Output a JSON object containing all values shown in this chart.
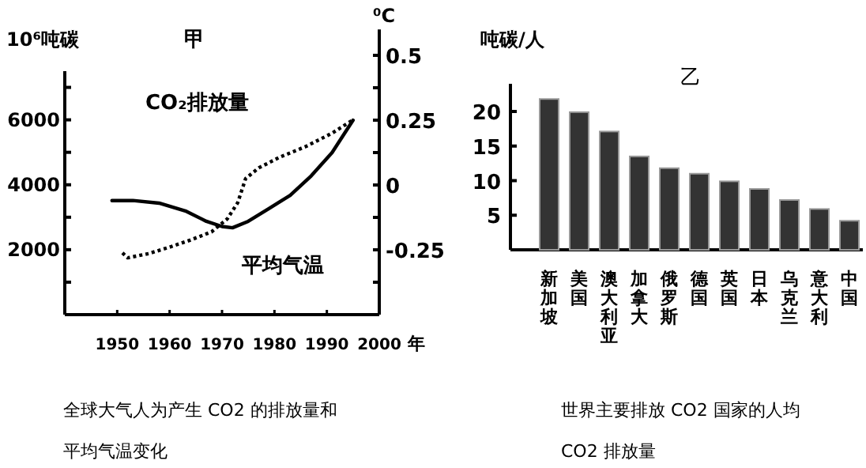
{
  "chart_data": [
    {
      "type": "line",
      "title": "甲",
      "ylabel": "10⁶吨碳",
      "y2label": "⁰C",
      "xlabel": "年",
      "xlim": [
        1940,
        2000
      ],
      "xticks": [
        1950,
        1960,
        1970,
        1980,
        1990,
        2000
      ],
      "ylim": [
        0,
        7500
      ],
      "yticks": [
        {
          "value": 1000,
          "label": null
        },
        2000,
        {
          "value": 3000,
          "label": null
        },
        4000,
        {
          "value": 5000,
          "label": null
        },
        6000,
        {
          "value": 7000,
          "label": null
        }
      ],
      "y2lim": [
        -0.5,
        0.6
      ],
      "y2ticks": [
        {
          "value": -0.375,
          "label": null
        },
        {
          "value": -0.25,
          "label": "-0.25"
        },
        {
          "value": -0.125,
          "label": null
        },
        0,
        {
          "value": 0.125,
          "label": null
        },
        0.25,
        {
          "value": 0.375,
          "label": null
        },
        0.5
      ],
      "grid": false,
      "series": [
        {
          "name": "CO₂排放量",
          "color": "#000000",
          "line_style": "dotted",
          "x": [
            1951,
            1952,
            1956,
            1960,
            1964,
            1968,
            1971,
            1973,
            1974.5,
            1977,
            1981,
            1986,
            1991,
            1995
          ],
          "values": [
            1900,
            1750,
            1880,
            2080,
            2300,
            2550,
            2950,
            3450,
            4190,
            4520,
            4850,
            5180,
            5590,
            6000
          ]
        },
        {
          "name": "平均气温",
          "color": "#000000",
          "line_style": "solid",
          "axis": "y2",
          "x": [
            1949,
            1953,
            1958,
            1963,
            1967,
            1970,
            1972,
            1975,
            1979,
            1983,
            1987,
            1991,
            1995
          ],
          "values": [
            -0.06,
            -0.06,
            -0.07,
            -0.1,
            -0.14,
            -0.16,
            -0.165,
            -0.14,
            -0.09,
            -0.04,
            0.035,
            0.125,
            0.25
          ]
        }
      ],
      "annotations": [
        "全球大气人为产生 CO2 的排放量和",
        "平均气温变化"
      ]
    },
    {
      "type": "bar",
      "title": "乙",
      "ylabel": "吨碳/人",
      "categories": [
        "新加坡",
        "美国",
        "澳大利亚",
        "加拿大",
        "俄罗斯",
        "德国",
        "英国",
        "日本",
        "乌克兰",
        "意大利",
        "中国"
      ],
      "values": [
        21.8,
        19.9,
        17.1,
        13.5,
        11.8,
        11.0,
        9.9,
        8.8,
        7.2,
        5.9,
        4.2
      ],
      "color": "#333333",
      "ylim": [
        0,
        24
      ],
      "yticks": [
        5,
        10,
        15,
        20
      ],
      "grid": false,
      "annotations": [
        "世界主要排放 CO2 国家的人均",
        "CO2 排放量"
      ]
    }
  ]
}
